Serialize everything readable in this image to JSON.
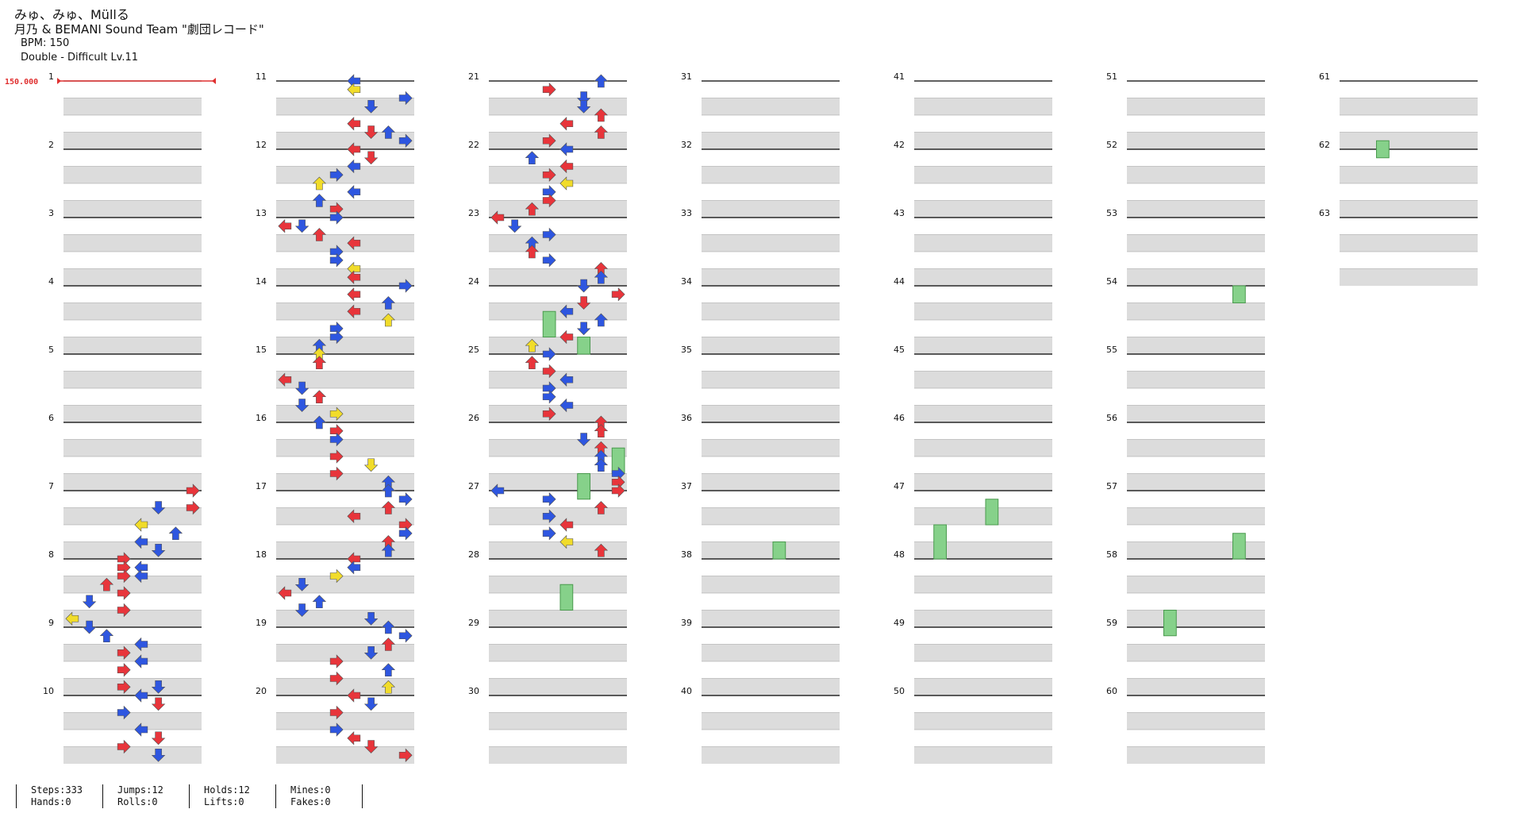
{
  "song": {
    "title": "みゅ、みゅ、Müllる",
    "artist": "月乃 & BEMANI Sound Team \"劇団レコード\"",
    "bpm_text": "BPM: 150",
    "difficulty_text": "Double - Difficult  Lv.11"
  },
  "bpm_marker": "150.000",
  "colors": {
    "quarter": "#e8353b",
    "eighth": "#2e56e0",
    "sixteenth": "#f1dc2a",
    "hold": "#86d18a"
  },
  "measure_numbers": [
    "1",
    "2",
    "3",
    "4",
    "5",
    "6",
    "7",
    "8",
    "9",
    "10",
    "11",
    "12",
    "13",
    "14",
    "15",
    "16",
    "17",
    "18",
    "19",
    "20",
    "21",
    "22",
    "23",
    "24",
    "25",
    "26",
    "27",
    "28",
    "29",
    "30",
    "31",
    "32",
    "33",
    "34",
    "35",
    "36",
    "37",
    "38",
    "39",
    "40",
    "41",
    "42",
    "43",
    "44",
    "45",
    "46",
    "47",
    "48",
    "49",
    "50",
    "51",
    "52",
    "53",
    "54",
    "55",
    "56",
    "57",
    "58",
    "59",
    "60",
    "61",
    "62",
    "63"
  ],
  "notes": [
    [
      7.0,
      7,
      "r"
    ],
    [
      7.25,
      5,
      "b"
    ],
    [
      7.25,
      7,
      "r"
    ],
    [
      7.5,
      4,
      "y"
    ],
    [
      7.625,
      6,
      "b"
    ],
    [
      7.75,
      4,
      "b"
    ],
    [
      7.875,
      5,
      "b"
    ],
    [
      8.0,
      3,
      "r"
    ],
    [
      8.125,
      3,
      "r"
    ],
    [
      8.125,
      4,
      "b"
    ],
    [
      8.25,
      3,
      "r"
    ],
    [
      8.25,
      4,
      "b"
    ],
    [
      8.375,
      2,
      "r"
    ],
    [
      8.5,
      3,
      "r"
    ],
    [
      8.625,
      1,
      "b"
    ],
    [
      8.75,
      3,
      "r"
    ],
    [
      8.875,
      0,
      "y"
    ],
    [
      9.0,
      1,
      "b"
    ],
    [
      9.125,
      2,
      "b"
    ],
    [
      9.25,
      4,
      "b"
    ],
    [
      9.375,
      3,
      "r"
    ],
    [
      9.5,
      4,
      "b"
    ],
    [
      9.625,
      3,
      "r"
    ],
    [
      9.875,
      3,
      "r"
    ],
    [
      9.875,
      5,
      "b"
    ],
    [
      10.0,
      4,
      "b"
    ],
    [
      10.125,
      5,
      "r"
    ],
    [
      10.25,
      3,
      "b"
    ],
    [
      10.5,
      4,
      "b"
    ],
    [
      10.625,
      5,
      "r"
    ],
    [
      10.75,
      3,
      "r"
    ],
    [
      10.875,
      5,
      "b"
    ],
    [
      11.0,
      4,
      "b"
    ],
    [
      11.125,
      4,
      "y"
    ],
    [
      11.25,
      7,
      "b"
    ],
    [
      11.375,
      5,
      "b"
    ],
    [
      11.625,
      4,
      "r"
    ],
    [
      11.75,
      6,
      "b"
    ],
    [
      11.75,
      5,
      "r"
    ],
    [
      11.875,
      7,
      "b"
    ],
    [
      12.0,
      4,
      "r"
    ],
    [
      12.125,
      5,
      "r"
    ],
    [
      12.25,
      4,
      "b"
    ],
    [
      12.375,
      3,
      "b"
    ],
    [
      12.5,
      2,
      "y"
    ],
    [
      12.625,
      4,
      "b"
    ],
    [
      12.75,
      2,
      "b"
    ],
    [
      12.875,
      3,
      "r"
    ],
    [
      13.0,
      3,
      "b"
    ],
    [
      13.125,
      0,
      "r"
    ],
    [
      13.125,
      1,
      "b"
    ],
    [
      13.25,
      2,
      "r"
    ],
    [
      13.375,
      4,
      "r"
    ],
    [
      13.5,
      3,
      "b"
    ],
    [
      13.625,
      3,
      "b"
    ],
    [
      13.75,
      4,
      "y"
    ],
    [
      13.875,
      4,
      "r"
    ],
    [
      14.0,
      7,
      "b"
    ],
    [
      14.125,
      4,
      "r"
    ],
    [
      14.25,
      6,
      "b"
    ],
    [
      14.375,
      4,
      "r"
    ],
    [
      14.5,
      6,
      "y"
    ],
    [
      14.625,
      3,
      "b"
    ],
    [
      14.75,
      3,
      "b"
    ],
    [
      14.875,
      2,
      "b"
    ],
    [
      15.0,
      2,
      "y"
    ],
    [
      15.125,
      2,
      "r"
    ],
    [
      15.375,
      0,
      "r"
    ],
    [
      15.5,
      1,
      "b"
    ],
    [
      15.625,
      2,
      "r"
    ],
    [
      15.75,
      1,
      "b"
    ],
    [
      15.875,
      3,
      "y"
    ],
    [
      16.0,
      2,
      "b"
    ],
    [
      16.125,
      3,
      "r"
    ],
    [
      16.25,
      3,
      "b"
    ],
    [
      16.5,
      3,
      "r"
    ],
    [
      16.625,
      5,
      "y"
    ],
    [
      16.75,
      3,
      "r"
    ],
    [
      16.875,
      6,
      "b"
    ],
    [
      17.0,
      6,
      "b"
    ],
    [
      17.125,
      7,
      "b"
    ],
    [
      17.25,
      6,
      "r"
    ],
    [
      17.375,
      4,
      "r"
    ],
    [
      17.5,
      7,
      "r"
    ],
    [
      17.625,
      7,
      "b"
    ],
    [
      17.75,
      6,
      "r"
    ],
    [
      17.875,
      6,
      "b"
    ],
    [
      18.0,
      4,
      "r"
    ],
    [
      18.125,
      4,
      "b"
    ],
    [
      18.25,
      3,
      "y"
    ],
    [
      18.375,
      1,
      "b"
    ],
    [
      18.5,
      0,
      "r"
    ],
    [
      18.625,
      2,
      "b"
    ],
    [
      18.75,
      1,
      "b"
    ],
    [
      18.875,
      5,
      "b"
    ],
    [
      19.0,
      6,
      "b"
    ],
    [
      19.125,
      7,
      "b"
    ],
    [
      19.25,
      6,
      "r"
    ],
    [
      19.375,
      5,
      "b"
    ],
    [
      19.5,
      3,
      "r"
    ],
    [
      19.625,
      6,
      "b"
    ],
    [
      19.75,
      3,
      "r"
    ],
    [
      19.875,
      6,
      "y"
    ],
    [
      20.0,
      4,
      "r"
    ],
    [
      20.125,
      5,
      "b"
    ],
    [
      20.25,
      3,
      "r"
    ],
    [
      20.5,
      3,
      "b"
    ],
    [
      20.625,
      4,
      "r"
    ],
    [
      20.75,
      5,
      "r"
    ],
    [
      20.875,
      7,
      "r"
    ],
    [
      21.0,
      6,
      "b"
    ],
    [
      21.125,
      3,
      "r"
    ],
    [
      21.25,
      5,
      "b"
    ],
    [
      21.375,
      5,
      "b"
    ],
    [
      21.5,
      6,
      "r"
    ],
    [
      21.625,
      4,
      "r"
    ],
    [
      21.75,
      6,
      "r"
    ],
    [
      21.875,
      3,
      "r"
    ],
    [
      22.0,
      4,
      "b"
    ],
    [
      22.125,
      2,
      "b"
    ],
    [
      22.25,
      4,
      "r"
    ],
    [
      22.375,
      3,
      "r"
    ],
    [
      22.5,
      4,
      "y"
    ],
    [
      22.625,
      3,
      "b"
    ],
    [
      22.75,
      3,
      "r"
    ],
    [
      22.875,
      2,
      "r"
    ],
    [
      23.0,
      0,
      "r"
    ],
    [
      23.125,
      1,
      "b"
    ],
    [
      23.25,
      3,
      "b"
    ],
    [
      23.375,
      2,
      "b"
    ],
    [
      23.5,
      2,
      "r"
    ],
    [
      23.625,
      3,
      "b"
    ],
    [
      23.75,
      6,
      "r"
    ],
    [
      23.875,
      6,
      "b"
    ],
    [
      24.0,
      5,
      "b"
    ],
    [
      24.125,
      7,
      "r"
    ],
    [
      24.25,
      5,
      "r"
    ],
    [
      24.375,
      4,
      "b"
    ],
    [
      24.5,
      6,
      "b"
    ],
    [
      24.625,
      5,
      "b"
    ],
    [
      24.75,
      4,
      "r"
    ],
    [
      24.875,
      2,
      "y"
    ],
    [
      25.0,
      3,
      "b"
    ],
    [
      25.125,
      2,
      "r"
    ],
    [
      25.25,
      3,
      "r"
    ],
    [
      25.375,
      4,
      "b"
    ],
    [
      25.5,
      3,
      "b"
    ],
    [
      25.625,
      3,
      "b"
    ],
    [
      25.75,
      4,
      "b"
    ],
    [
      25.875,
      3,
      "r"
    ],
    [
      26.0,
      6,
      "r"
    ],
    [
      26.125,
      6,
      "r"
    ],
    [
      26.25,
      5,
      "b"
    ],
    [
      26.375,
      6,
      "r"
    ],
    [
      26.5,
      6,
      "b"
    ],
    [
      26.625,
      6,
      "b"
    ],
    [
      26.75,
      7,
      "b"
    ],
    [
      26.875,
      7,
      "r"
    ],
    [
      27.0,
      0,
      "b"
    ],
    [
      27.0,
      7,
      "r"
    ],
    [
      27.125,
      3,
      "b"
    ],
    [
      27.25,
      6,
      "r"
    ],
    [
      27.375,
      3,
      "b"
    ],
    [
      27.5,
      4,
      "r"
    ],
    [
      27.625,
      3,
      "b"
    ],
    [
      27.75,
      4,
      "y"
    ],
    [
      27.875,
      6,
      "r"
    ]
  ],
  "holds": [
    [
      24.375,
      24.75,
      3
    ],
    [
      24.75,
      25.0,
      5
    ],
    [
      26.375,
      26.75,
      7
    ],
    [
      26.75,
      27.125,
      5
    ],
    [
      28.375,
      28.75,
      4
    ],
    [
      37.75,
      38.0,
      4
    ],
    [
      47.125,
      47.5,
      4
    ],
    [
      47.5,
      48.0,
      1
    ],
    [
      54.0,
      54.25,
      6
    ],
    [
      57.625,
      58.0,
      6
    ],
    [
      58.75,
      59.125,
      2
    ],
    [
      61.875,
      62.125,
      2
    ]
  ],
  "footer": [
    [
      "Steps:333",
      "Hands:0"
    ],
    [
      "Jumps:12",
      "Rolls:0"
    ],
    [
      "Holds:12",
      "Lifts:0"
    ],
    [
      "Mines:0",
      "Fakes:0"
    ]
  ]
}
